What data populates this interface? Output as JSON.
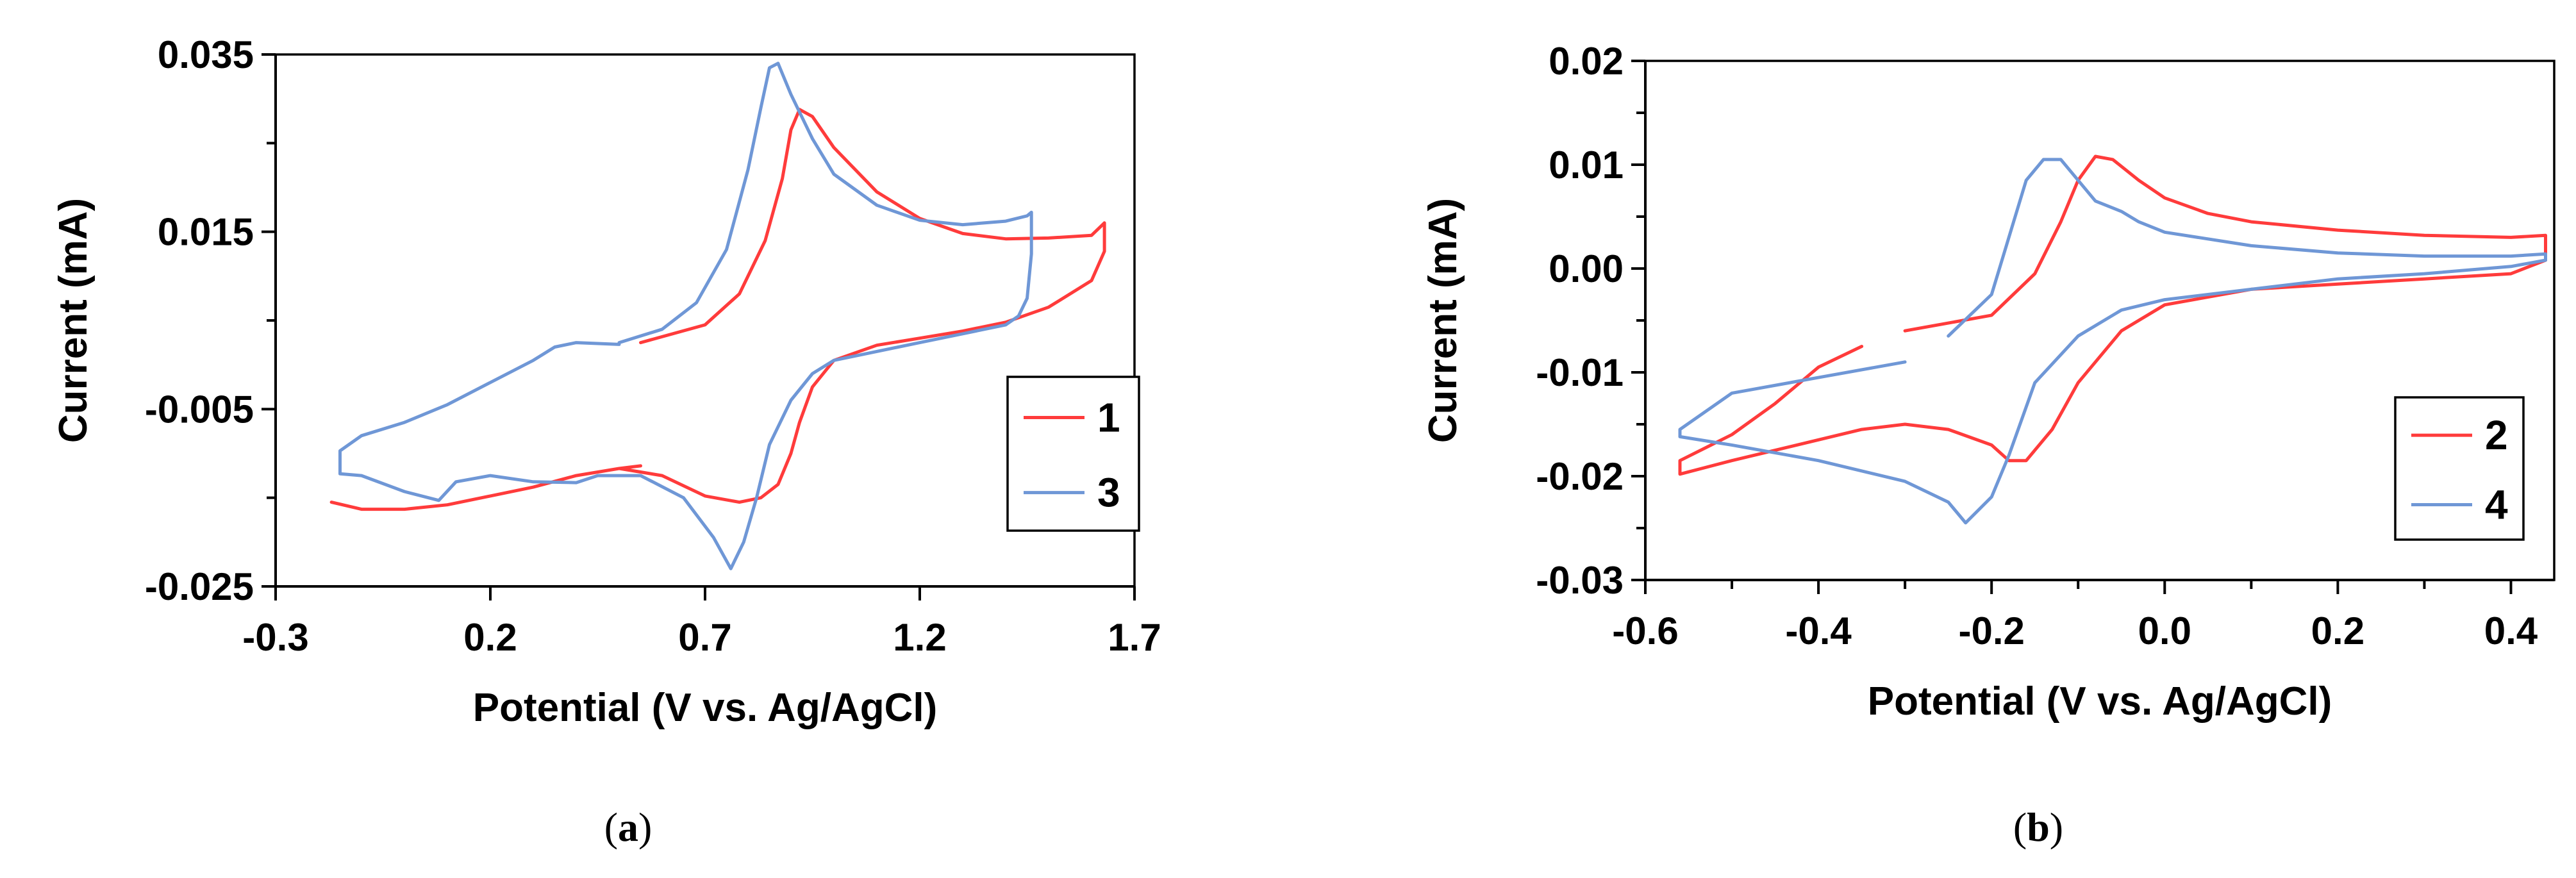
{
  "figure": {
    "panels": [
      {
        "open": "(",
        "letter": "a",
        "close": ")"
      },
      {
        "open": "(",
        "letter": "b",
        "close": ")"
      }
    ]
  },
  "colors": {
    "red": "#ff3b3b",
    "blue": "#6f97d6"
  },
  "chart_data": [
    {
      "type": "line",
      "title": "",
      "xlabel": "Potential (V vs. Ag/AgCl)",
      "ylabel": "Current (mA)",
      "xlim": [
        -0.3,
        1.7
      ],
      "ylim": [
        -0.025,
        0.035
      ],
      "xticks": [
        -0.3,
        0.2,
        0.7,
        1.2,
        1.7
      ],
      "xtick_labels": [
        "-0.3",
        "0.2",
        "0.7",
        "1.2",
        "1.7"
      ],
      "yticks": [
        -0.025,
        -0.005,
        0.015,
        0.035
      ],
      "ytick_labels": [
        "-0.025",
        "-0.005",
        "0.015",
        "0.035"
      ],
      "y_minor_ticks": [
        -0.015,
        0.005,
        0.025
      ],
      "legend_position": "right",
      "grid": false,
      "series": [
        {
          "name": "1",
          "color": "#ff3b3b",
          "x": [
            0.55,
            0.7,
            0.78,
            0.84,
            0.88,
            0.9,
            0.92,
            0.95,
            1.0,
            1.1,
            1.2,
            1.3,
            1.4,
            1.5,
            1.6,
            1.63,
            1.63,
            1.6,
            1.5,
            1.4,
            1.3,
            1.2,
            1.1,
            1.0,
            0.95,
            0.92,
            0.9,
            0.87,
            0.83,
            0.78,
            0.7,
            0.6,
            0.5,
            0.4,
            0.3,
            0.2,
            0.1,
            0.0,
            -0.1,
            -0.17,
            -0.17,
            -0.1,
            0.0,
            0.1,
            0.2,
            0.3,
            0.4,
            0.5,
            0.55
          ],
          "values": [
            0.0025,
            0.0045,
            0.008,
            0.014,
            0.021,
            0.0265,
            0.0288,
            0.028,
            0.0245,
            0.0195,
            0.0165,
            0.0148,
            0.0142,
            0.0143,
            0.0146,
            0.016,
            0.0128,
            0.0095,
            0.0065,
            0.0048,
            0.0038,
            0.003,
            0.0022,
            0.0005,
            -0.0025,
            -0.0065,
            -0.01,
            -0.0135,
            -0.015,
            -0.0155,
            -0.0148,
            -0.0125,
            -0.0117,
            -0.0125,
            -0.0138,
            -0.0148,
            -0.0158,
            -0.0163,
            -0.0163,
            -0.0155,
            -0.0155,
            -0.0163,
            -0.0163,
            -0.0158,
            -0.0148,
            -0.0138,
            -0.0125,
            -0.0117,
            -0.0114
          ]
        },
        {
          "name": "3",
          "color": "#6f97d6",
          "x": [
            0.5,
            0.6,
            0.68,
            0.75,
            0.8,
            0.83,
            0.85,
            0.87,
            0.9,
            0.95,
            1.0,
            1.1,
            1.2,
            1.3,
            1.4,
            1.45,
            1.46,
            1.46,
            1.45,
            1.43,
            1.4,
            1.3,
            1.2,
            1.1,
            1.0,
            0.95,
            0.9,
            0.85,
            0.82,
            0.79,
            0.76,
            0.72,
            0.65,
            0.55,
            0.45,
            0.4,
            0.3,
            0.2,
            0.12,
            0.08,
            0.0,
            -0.1,
            -0.15,
            -0.15,
            -0.1,
            0.0,
            0.1,
            0.2,
            0.3,
            0.35,
            0.4,
            0.5
          ],
          "values": [
            0.0025,
            0.004,
            0.007,
            0.013,
            0.022,
            0.029,
            0.0335,
            0.034,
            0.0305,
            0.0255,
            0.0215,
            0.018,
            0.0163,
            0.0158,
            0.0162,
            0.0168,
            0.0172,
            0.0125,
            0.0075,
            0.0055,
            0.0045,
            0.0035,
            0.0025,
            0.0015,
            0.0005,
            -0.001,
            -0.004,
            -0.009,
            -0.015,
            -0.02,
            -0.023,
            -0.0195,
            -0.015,
            -0.0125,
            -0.0125,
            -0.0133,
            -0.0132,
            -0.0125,
            -0.0132,
            -0.0153,
            -0.0143,
            -0.0125,
            -0.0123,
            -0.0097,
            -0.008,
            -0.0065,
            -0.0045,
            -0.002,
            0.0005,
            0.002,
            0.0025,
            0.0023
          ]
        }
      ]
    },
    {
      "type": "line",
      "title": "",
      "xlabel": "Potential (V vs. Ag/AgCl)",
      "ylabel": "Current (mA)",
      "xlim": [
        -0.6,
        0.45
      ],
      "ylim": [
        -0.03,
        0.02
      ],
      "xticks": [
        -0.6,
        -0.4,
        -0.2,
        0.0,
        0.2,
        0.4
      ],
      "xtick_labels": [
        "-0.6",
        "-0.4",
        "-0.2",
        "0.0",
        "0.2",
        "0.4"
      ],
      "yticks": [
        -0.03,
        -0.02,
        -0.01,
        0.0,
        0.01,
        0.02
      ],
      "ytick_labels": [
        "-0.03",
        "-0.02",
        "-0.01",
        "0.00",
        "0.01",
        "0.02"
      ],
      "x_minor_ticks": [
        -0.5,
        -0.3,
        -0.1,
        0.1,
        0.3
      ],
      "y_minor_ticks": [
        -0.025,
        -0.015,
        -0.005,
        0.005,
        0.015
      ],
      "legend_position": "right",
      "grid": false,
      "series": [
        {
          "name": "2",
          "color": "#ff3b3b",
          "x": [
            -0.3,
            -0.2,
            -0.15,
            -0.12,
            -0.1,
            -0.08,
            -0.06,
            -0.03,
            0.0,
            0.05,
            0.1,
            0.2,
            0.3,
            0.4,
            0.44,
            0.44,
            0.4,
            0.3,
            0.2,
            0.1,
            0.0,
            -0.05,
            -0.1,
            -0.13,
            -0.16,
            -0.18,
            -0.2,
            -0.25,
            -0.3,
            -0.35,
            -0.4,
            -0.5,
            -0.56,
            -0.56,
            -0.5,
            -0.45,
            -0.4,
            -0.35
          ],
          "values": [
            -0.006,
            -0.0045,
            -0.0005,
            0.0045,
            0.0085,
            0.0108,
            0.0105,
            0.0085,
            0.0068,
            0.0053,
            0.0045,
            0.0037,
            0.0032,
            0.003,
            0.0032,
            0.0008,
            -0.0005,
            -0.001,
            -0.0015,
            -0.002,
            -0.0035,
            -0.006,
            -0.011,
            -0.0155,
            -0.0185,
            -0.0185,
            -0.017,
            -0.0155,
            -0.015,
            -0.0155,
            -0.0165,
            -0.0185,
            -0.0198,
            -0.0185,
            -0.016,
            -0.013,
            -0.0095,
            -0.0075
          ]
        },
        {
          "name": "4",
          "color": "#6f97d6",
          "x": [
            -0.25,
            -0.2,
            -0.18,
            -0.16,
            -0.14,
            -0.12,
            -0.1,
            -0.08,
            -0.05,
            -0.03,
            0.0,
            0.1,
            0.2,
            0.3,
            0.4,
            0.44,
            0.44,
            0.4,
            0.3,
            0.2,
            0.1,
            0.0,
            -0.05,
            -0.1,
            -0.15,
            -0.18,
            -0.2,
            -0.23,
            -0.25,
            -0.3,
            -0.4,
            -0.5,
            -0.56,
            -0.56,
            -0.5,
            -0.4,
            -0.3
          ],
          "values": [
            -0.0065,
            -0.0025,
            0.003,
            0.0085,
            0.0105,
            0.0105,
            0.0085,
            0.0065,
            0.0055,
            0.0045,
            0.0035,
            0.0022,
            0.0015,
            0.0012,
            0.0012,
            0.0014,
            0.0008,
            0.0002,
            -0.0005,
            -0.001,
            -0.002,
            -0.003,
            -0.004,
            -0.0065,
            -0.011,
            -0.018,
            -0.022,
            -0.0245,
            -0.0225,
            -0.0205,
            -0.0185,
            -0.017,
            -0.0162,
            -0.0155,
            -0.012,
            -0.0105,
            -0.009
          ]
        }
      ]
    }
  ]
}
